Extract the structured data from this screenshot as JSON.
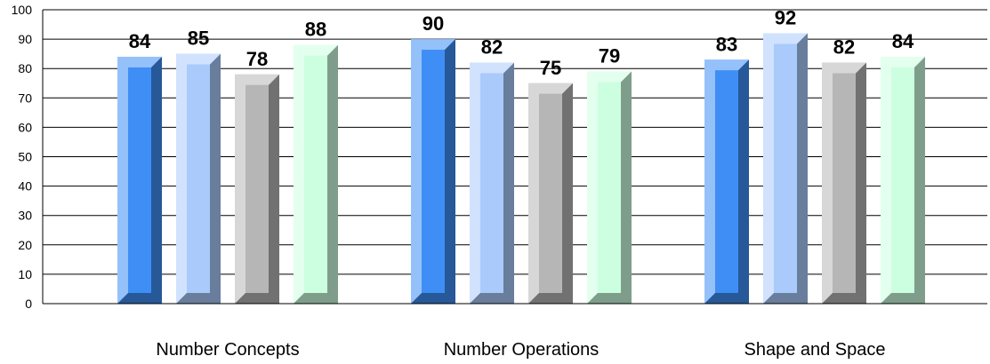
{
  "chart_data": {
    "type": "bar",
    "categories": [
      "Number Concepts",
      "Number Operations",
      "Shape and Space"
    ],
    "series": [
      {
        "values": [
          84,
          90,
          83
        ],
        "color": "#3f8ef5"
      },
      {
        "values": [
          85,
          82,
          92
        ],
        "color": "#a9cafb"
      },
      {
        "values": [
          78,
          75,
          82
        ],
        "color": "#b6b6b6"
      },
      {
        "values": [
          88,
          79,
          84
        ],
        "color": "#ccffe0"
      }
    ],
    "ylim": [
      0,
      100
    ],
    "yticks": [
      0,
      10,
      20,
      30,
      40,
      50,
      60,
      70,
      80,
      90,
      100
    ],
    "grid": true,
    "legend": "none",
    "title": "",
    "xlabel": "",
    "ylabel": ""
  }
}
